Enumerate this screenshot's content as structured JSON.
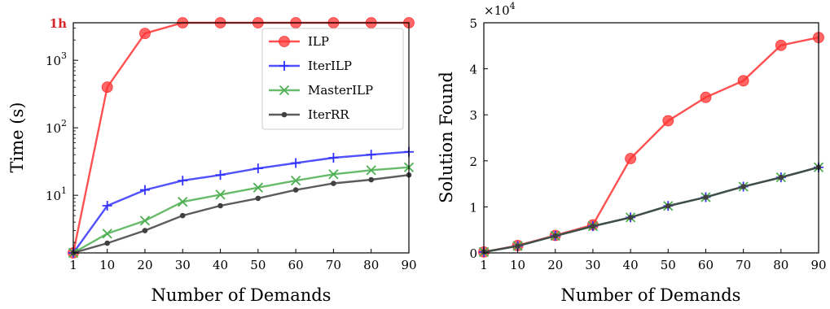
{
  "chart_data": [
    {
      "type": "line",
      "xlabel": "Number of Demands",
      "ylabel": "Time (s)",
      "yscale": "log",
      "ylim": [
        1.4,
        3600
      ],
      "x": [
        1,
        10,
        20,
        30,
        40,
        50,
        60,
        70,
        80,
        90
      ],
      "x_ticks": [
        "1",
        "10",
        "20",
        "30",
        "40",
        "50",
        "60",
        "70",
        "80",
        "90"
      ],
      "y_ticks": [
        {
          "value": 10,
          "base": "10",
          "exp": "1"
        },
        {
          "value": 100,
          "base": "10",
          "exp": "2"
        },
        {
          "value": 1000,
          "base": "10",
          "exp": "3"
        }
      ],
      "y_special_tick": {
        "value": 3600,
        "label": "1h",
        "color": "#d62728"
      },
      "legend": "top-right",
      "grid": false,
      "series": [
        {
          "name": "ILP",
          "color": "#ff3333",
          "marker": "circle",
          "values": [
            1.4,
            400,
            2500,
            3600,
            3600,
            3600,
            3600,
            3600,
            3600,
            3600
          ]
        },
        {
          "name": "IterILP",
          "color": "#3333ff",
          "marker": "plus",
          "values": [
            1.4,
            7,
            12,
            16.5,
            20,
            25,
            30,
            36,
            40,
            44
          ]
        },
        {
          "name": "MasterILP",
          "color": "#4caf50",
          "marker": "x",
          "values": [
            1.4,
            2.7,
            4.2,
            8,
            10.2,
            13,
            16.5,
            20.5,
            23.5,
            26
          ]
        },
        {
          "name": "IterRR",
          "color": "#404040",
          "marker": "dot",
          "values": [
            1.4,
            1.95,
            3,
            5,
            7,
            9,
            12,
            15,
            17,
            20
          ]
        }
      ]
    },
    {
      "type": "line",
      "xlabel": "Number of Demands",
      "ylabel": "Solution Found",
      "ylim": [
        0,
        50000
      ],
      "x": [
        1,
        10,
        20,
        30,
        40,
        50,
        60,
        70,
        80,
        90
      ],
      "x_ticks": [
        "1",
        "10",
        "20",
        "30",
        "40",
        "50",
        "60",
        "70",
        "80",
        "90"
      ],
      "y_ticks": [
        {
          "value": 0,
          "label": "0"
        },
        {
          "value": 10000,
          "label": "1"
        },
        {
          "value": 20000,
          "label": "2"
        },
        {
          "value": 30000,
          "label": "3"
        },
        {
          "value": 40000,
          "label": "4"
        },
        {
          "value": 50000,
          "label": "5"
        }
      ],
      "y_multiplier": {
        "base": "×10",
        "exp": "4"
      },
      "grid": false,
      "series": [
        {
          "name": "ILP",
          "color": "#ff3333",
          "marker": "circle",
          "values": [
            200,
            1600,
            3800,
            6100,
            20500,
            28700,
            33800,
            37400,
            45100,
            46800
          ]
        },
        {
          "name": "IterILP",
          "color": "#3333ff",
          "marker": "plus",
          "values": [
            200,
            1500,
            3700,
            5800,
            7700,
            10200,
            12100,
            14400,
            16400,
            18600
          ]
        },
        {
          "name": "MasterILP",
          "color": "#4caf50",
          "marker": "x",
          "values": [
            200,
            1500,
            3700,
            5800,
            7700,
            10200,
            12100,
            14400,
            16400,
            18600
          ]
        },
        {
          "name": "IterRR",
          "color": "#404040",
          "marker": "dot",
          "values": [
            200,
            1500,
            3700,
            5800,
            7700,
            10200,
            12100,
            14400,
            16400,
            18600
          ]
        }
      ]
    }
  ]
}
